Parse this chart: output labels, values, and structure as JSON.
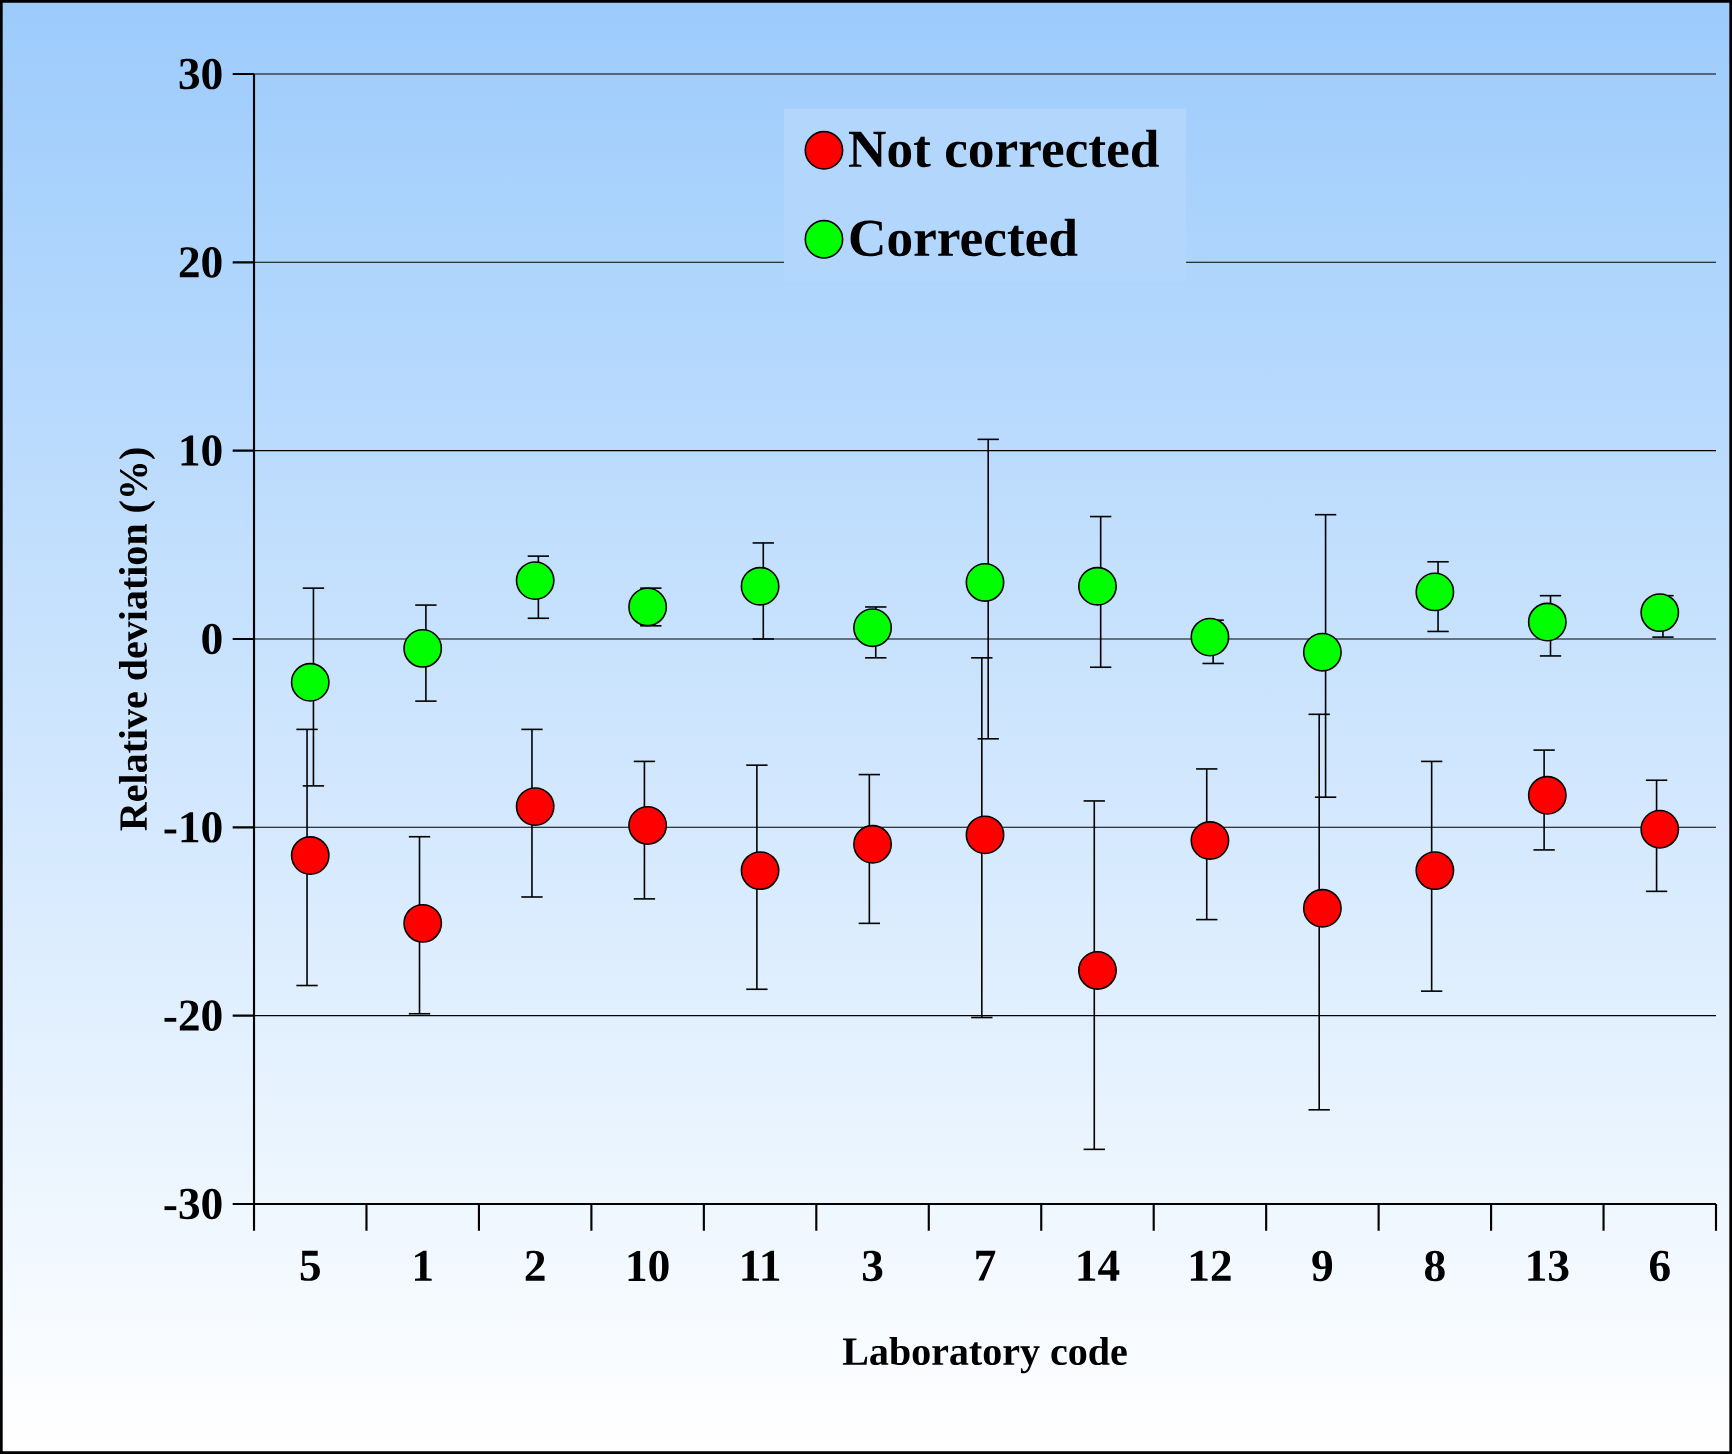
{
  "chart_data": {
    "type": "scatter",
    "xlabel": "Laboratory code",
    "ylabel": "Relative deviation (%)",
    "categories": [
      "5",
      "1",
      "2",
      "10",
      "11",
      "3",
      "7",
      "14",
      "12",
      "9",
      "8",
      "13",
      "6"
    ],
    "ylim": [
      -30,
      30
    ],
    "yticks": [
      -30,
      -20,
      -10,
      0,
      10,
      20,
      30
    ],
    "grid": "y",
    "legend": "top",
    "marker": "circle",
    "series": [
      {
        "name": "Not corrected",
        "color": "#ff0000",
        "values": [
          -11.5,
          -15.1,
          -8.9,
          -9.9,
          -12.3,
          -10.9,
          -10.4,
          -17.6,
          -10.7,
          -14.3,
          -12.3,
          -8.3,
          -10.1
        ],
        "errors": [
          [
            -18.4,
            -4.8
          ],
          [
            -19.9,
            -10.5
          ],
          [
            -13.7,
            -4.8
          ],
          [
            -13.8,
            -6.5
          ],
          [
            -18.6,
            -6.7
          ],
          [
            -15.1,
            -7.2
          ],
          [
            -20.1,
            -1.0
          ],
          [
            -27.1,
            -8.6
          ],
          [
            -14.9,
            -6.9
          ],
          [
            -25.0,
            -4.0
          ],
          [
            -18.7,
            -6.5
          ],
          [
            -11.2,
            -5.9
          ],
          [
            -13.4,
            -7.5
          ]
        ]
      },
      {
        "name": "Corrected",
        "color": "#00ff00",
        "values": [
          -2.3,
          -0.5,
          3.1,
          1.7,
          2.8,
          0.6,
          3.0,
          2.8,
          0.1,
          -0.7,
          2.5,
          0.9,
          1.4
        ],
        "errors": [
          [
            -7.8,
            2.7
          ],
          [
            -3.3,
            1.8
          ],
          [
            1.1,
            4.4
          ],
          [
            0.7,
            2.7
          ],
          [
            0.0,
            5.1
          ],
          [
            -1.0,
            1.7
          ],
          [
            -5.3,
            10.6
          ],
          [
            -1.5,
            6.5
          ],
          [
            -1.3,
            1.0
          ],
          [
            -8.4,
            6.6
          ],
          [
            0.4,
            4.1
          ],
          [
            -0.9,
            2.3
          ],
          [
            0.1,
            2.3
          ]
        ]
      }
    ]
  }
}
